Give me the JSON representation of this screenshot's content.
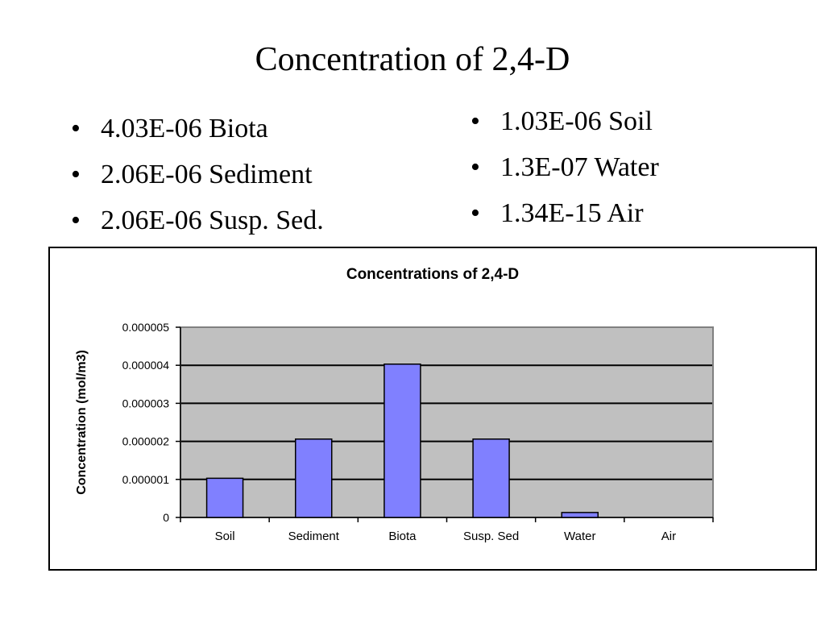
{
  "slide": {
    "title": "Concentration of 2,4-D",
    "bullet_glyph": "•",
    "bullets_left": [
      "4.03E-06 Biota",
      "2.06E-06 Sediment",
      "2.06E-06 Susp. Sed."
    ],
    "bullets_right": [
      "1.03E-06 Soil",
      "1.3E-07 Water",
      "1.34E-15 Air"
    ]
  },
  "chart_data": {
    "type": "bar",
    "title": "Concentrations of 2,4-D",
    "xlabel": "",
    "ylabel": "Concentration (mol/m3)",
    "categories": [
      "Soil",
      "Sediment",
      "Biota",
      "Susp. Sed",
      "Water",
      "Air"
    ],
    "values": [
      1.03e-06,
      2.06e-06,
      4.03e-06,
      2.06e-06,
      1.3e-07,
      1.34e-15
    ],
    "ylim": [
      0,
      5e-06
    ],
    "yticks": [
      "0",
      "0.000001",
      "0.000002",
      "0.000003",
      "0.000004",
      "0.000005"
    ],
    "grid": true,
    "legend": "none",
    "colors": {
      "bar_fill": "#8080FF",
      "bar_stroke": "#000000",
      "plot_background": "#C0C0C0",
      "gridline": "#000000",
      "plot_border": "#808080"
    }
  }
}
